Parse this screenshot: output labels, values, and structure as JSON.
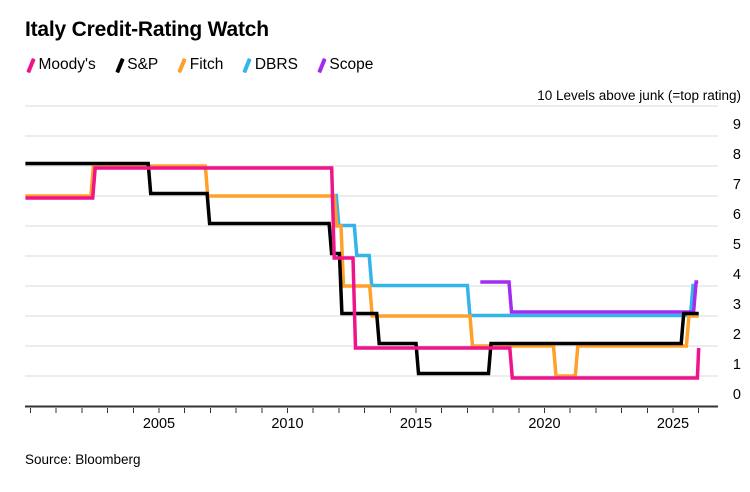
{
  "title": "Italy Credit-Rating Watch",
  "source": "Source: Bloomberg",
  "chart_data": {
    "type": "line",
    "style": "step",
    "title": "Italy Credit-Rating Watch",
    "x_axis": {
      "tick_years_start": 2000,
      "tick_years_end": 2026,
      "label_years": [
        2005,
        2010,
        2015,
        2020,
        2025
      ],
      "domain": [
        1999.8,
        2027.0
      ]
    },
    "y_axis": {
      "label": "10 Levels above junk (=top rating)",
      "tick_labels": [
        "0",
        "1",
        "2",
        "3",
        "4",
        "5",
        "6",
        "7",
        "8",
        "9"
      ],
      "ylim": [
        0,
        10
      ],
      "grid": true,
      "side": "right"
    },
    "legend_position": "top-left",
    "series": [
      {
        "name": "Moody's",
        "color": "#F0148C",
        "offset": 2,
        "points": [
          [
            1999.8,
            7
          ],
          [
            2002.42,
            8
          ],
          [
            2011.72,
            5
          ],
          [
            2012.55,
            2
          ],
          [
            2018.65,
            1
          ],
          [
            2025.95,
            2
          ]
        ],
        "end": 2026.0
      },
      {
        "name": "S&P",
        "color": "#000000",
        "offset": -2.5,
        "points": [
          [
            1999.8,
            8
          ],
          [
            2004.58,
            7
          ],
          [
            2006.87,
            6
          ],
          [
            2011.62,
            5
          ],
          [
            2012.02,
            3
          ],
          [
            2013.47,
            2
          ],
          [
            2015.0,
            1
          ],
          [
            2017.82,
            2
          ],
          [
            2025.32,
            3
          ]
        ],
        "end": 2026.0
      },
      {
        "name": "Fitch",
        "color": "#FFA028",
        "offset": 0,
        "points": [
          [
            1999.8,
            7
          ],
          [
            2002.35,
            8
          ],
          [
            2006.8,
            7
          ],
          [
            2011.82,
            6
          ],
          [
            2012.08,
            4
          ],
          [
            2013.2,
            3
          ],
          [
            2017.1,
            2
          ],
          [
            2020.35,
            1
          ],
          [
            2021.2,
            2
          ],
          [
            2025.52,
            3
          ]
        ],
        "end": 2026.0
      },
      {
        "name": "DBRS",
        "color": "#33B5EC",
        "offset": -0.5,
        "points": [
          [
            2011.8,
            7
          ],
          [
            2011.9,
            6
          ],
          [
            2012.6,
            5
          ],
          [
            2013.18,
            4
          ],
          [
            2017.0,
            3
          ],
          [
            2025.68,
            4
          ]
        ],
        "end": 2025.95
      },
      {
        "name": "Scope",
        "color": "#A32CF0",
        "offset": -4,
        "points": [
          [
            2017.5,
            4
          ],
          [
            2018.62,
            3
          ],
          [
            2025.8,
            4
          ]
        ],
        "end": 2025.98
      }
    ],
    "draw_order": [
      "DBRS",
      "Scope",
      "Fitch",
      "S&P",
      "Moody's"
    ],
    "colors": {
      "gridline": "#DBDBDB",
      "axis": "#333333",
      "text": "#000000",
      "background": "#FFFFFF"
    }
  }
}
